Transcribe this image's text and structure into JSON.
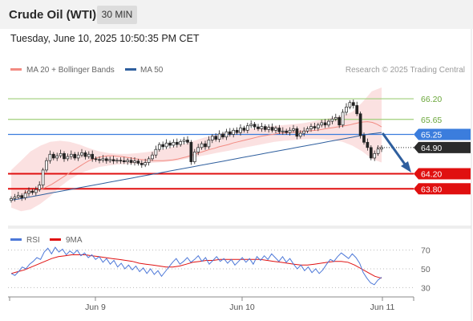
{
  "header": {
    "title": "Crude Oil (WTI)",
    "timeframe": "30 MIN",
    "datetime": "Tuesday, June 10, 2025 10:50:35 PM CET"
  },
  "chart_data": [
    {
      "type": "candlestick",
      "legend": [
        {
          "name": "MA 20 + Bollinger Bands",
          "color": "#f28b82"
        },
        {
          "name": "MA 50",
          "color": "#2f5f9e"
        }
      ],
      "legend_position": "top-left",
      "credit": "Research © 2025 Trading Central",
      "ylim": [
        62.8,
        66.8
      ],
      "x_ticks": [
        "Jun 9",
        "Jun 10",
        "Jun 11"
      ],
      "levels": [
        {
          "label": "66.20",
          "value": 66.2,
          "kind": "resistance",
          "color": "#9fcf7a"
        },
        {
          "label": "65.65",
          "value": 65.65,
          "kind": "resistance",
          "color": "#9fcf7a"
        },
        {
          "label": "65.25",
          "value": 65.25,
          "kind": "pivot",
          "color": "#3b7ddd"
        },
        {
          "label": "64.90",
          "value": 64.9,
          "kind": "last-price",
          "color": "#2b2b2b"
        },
        {
          "label": "64.20",
          "value": 64.2,
          "kind": "support",
          "color": "#e01010"
        },
        {
          "label": "63.80",
          "value": 63.8,
          "kind": "support",
          "color": "#e01010"
        }
      ],
      "closes": [
        63.54,
        63.58,
        63.62,
        63.56,
        63.68,
        63.74,
        63.7,
        63.78,
        63.9,
        64.3,
        64.55,
        64.72,
        64.62,
        64.68,
        64.74,
        64.6,
        64.66,
        64.72,
        64.62,
        64.7,
        64.76,
        64.66,
        64.72,
        64.6,
        64.58,
        64.56,
        64.6,
        64.55,
        64.58,
        64.54,
        64.56,
        64.55,
        64.52,
        64.56,
        64.5,
        64.54,
        64.48,
        64.44,
        64.5,
        64.6,
        64.7,
        64.85,
        64.98,
        64.92,
        65.02,
        64.96,
        65.04,
        64.98,
        65.06,
        65.1,
        65.04,
        64.52,
        64.78,
        64.9,
        65.0,
        64.92,
        65.1,
        65.2,
        65.12,
        65.26,
        65.18,
        65.32,
        65.25,
        65.36,
        65.3,
        65.42,
        65.36,
        65.48,
        65.52,
        65.45,
        65.4,
        65.46,
        65.38,
        65.44,
        65.36,
        65.42,
        65.32,
        65.34,
        65.3,
        65.36,
        65.4,
        65.2,
        65.28,
        65.34,
        65.4,
        65.46,
        65.42,
        65.5,
        65.56,
        65.5,
        65.6,
        65.66,
        65.7,
        65.5,
        65.84,
        65.98,
        66.1,
        66.02,
        65.8,
        65.22,
        65.04,
        64.9,
        64.62,
        64.74,
        64.86,
        64.9
      ],
      "ma20": [
        63.7,
        63.72,
        63.74,
        63.76,
        63.8,
        63.86,
        63.92,
        64.0,
        64.08,
        64.16,
        64.24,
        64.32,
        64.4,
        64.48,
        64.55,
        64.6,
        64.64,
        64.66,
        64.68,
        64.68,
        64.67,
        64.66,
        64.64,
        64.62,
        64.6,
        64.58,
        64.57,
        64.56,
        64.55,
        64.55,
        64.55,
        64.56,
        64.57,
        64.59,
        64.62,
        64.65,
        64.69,
        64.73,
        64.77,
        64.81,
        64.85,
        64.88,
        64.92,
        64.95,
        64.98,
        65.02,
        65.05,
        65.08,
        65.11,
        65.14,
        65.17,
        65.2,
        65.22,
        65.24,
        65.26,
        65.28,
        65.29,
        65.3,
        65.31,
        65.32,
        65.33,
        65.34,
        65.35,
        65.36,
        65.38,
        65.4,
        65.42,
        65.44,
        65.46,
        65.48,
        65.5,
        65.53,
        65.56,
        65.58,
        65.59,
        65.57,
        65.52,
        65.45
      ],
      "ma50": [
        63.5,
        63.52,
        63.55,
        63.58,
        63.61,
        63.64,
        63.67,
        63.7,
        63.73,
        63.76,
        63.79,
        63.82,
        63.85,
        63.88,
        63.91,
        63.94,
        63.97,
        64.0,
        64.03,
        64.06,
        64.09,
        64.12,
        64.15,
        64.18,
        64.21,
        64.24,
        64.27,
        64.3,
        64.33,
        64.36,
        64.39,
        64.42,
        64.45,
        64.48,
        64.51,
        64.54,
        64.57,
        64.6,
        64.63,
        64.66,
        64.69,
        64.72,
        64.75,
        64.78,
        64.81,
        64.84,
        64.87,
        64.9,
        64.93,
        64.96,
        64.99,
        65.02,
        65.05,
        65.08,
        65.11,
        65.14,
        65.17,
        65.2,
        65.23,
        65.26,
        65.28,
        65.3
      ],
      "bb_upper": [
        64.3,
        64.55,
        64.8,
        64.95,
        65.05,
        65.08,
        65.05,
        64.98,
        64.88,
        64.8,
        64.75,
        64.73,
        64.73,
        64.75,
        64.78,
        64.82,
        64.88,
        64.95,
        65.02,
        65.1,
        65.18,
        65.24,
        65.3,
        65.34,
        65.38,
        65.42,
        65.45,
        65.48,
        65.5,
        65.52,
        65.55,
        65.6,
        65.65,
        65.7,
        65.75,
        65.85,
        66.1,
        66.4,
        66.5
      ],
      "bb_lower": [
        63.3,
        63.2,
        63.25,
        63.4,
        63.6,
        63.85,
        64.05,
        64.2,
        64.3,
        64.38,
        64.42,
        64.45,
        64.46,
        64.47,
        64.48,
        64.5,
        64.52,
        64.55,
        64.6,
        64.65,
        64.7,
        64.75,
        64.8,
        64.85,
        64.9,
        64.95,
        65.0,
        65.05,
        65.08,
        65.1,
        65.12,
        65.13,
        65.12,
        65.1,
        65.05,
        64.95,
        64.8,
        64.6,
        64.5
      ]
    },
    {
      "type": "line",
      "legend": [
        {
          "name": "RSI",
          "color": "#4d78d8"
        },
        {
          "name": "9MA",
          "color": "#e01010"
        }
      ],
      "ylim": [
        20,
        80
      ],
      "y_ticks": [
        70,
        50,
        30
      ],
      "series": [
        {
          "name": "RSI",
          "values": [
            45,
            43,
            47,
            52,
            50,
            55,
            58,
            62,
            60,
            68,
            72,
            66,
            73,
            68,
            71,
            65,
            69,
            66,
            70,
            64,
            67,
            62,
            65,
            60,
            63,
            57,
            61,
            55,
            59,
            52,
            56,
            50,
            54,
            49,
            53,
            47,
            51,
            45,
            50,
            44,
            48,
            42,
            47,
            52,
            57,
            61,
            55,
            58,
            62,
            57,
            60,
            64,
            58,
            62,
            55,
            59,
            63,
            58,
            61,
            56,
            60,
            54,
            58,
            62,
            57,
            61,
            55,
            63,
            59,
            64,
            60,
            66,
            62,
            58,
            63,
            57,
            61,
            55,
            50,
            54,
            48,
            52,
            46,
            50,
            45,
            49,
            55,
            60,
            58,
            63,
            67,
            64,
            61,
            66,
            62,
            56,
            46,
            40,
            35,
            33,
            38,
            41
          ]
        },
        {
          "name": "9MA",
          "values": [
            45,
            47,
            49,
            52,
            55,
            58,
            61,
            63,
            64,
            65,
            65,
            65,
            64,
            63,
            62,
            61,
            60,
            59,
            58,
            56,
            55,
            54,
            53,
            52,
            52,
            53,
            55,
            57,
            58,
            59,
            59,
            60,
            60,
            60,
            60,
            60,
            60,
            60,
            59,
            58,
            57,
            56,
            55,
            54,
            54,
            55,
            56,
            57,
            58,
            58,
            57,
            54,
            50,
            46,
            42,
            40
          ]
        }
      ]
    }
  ]
}
